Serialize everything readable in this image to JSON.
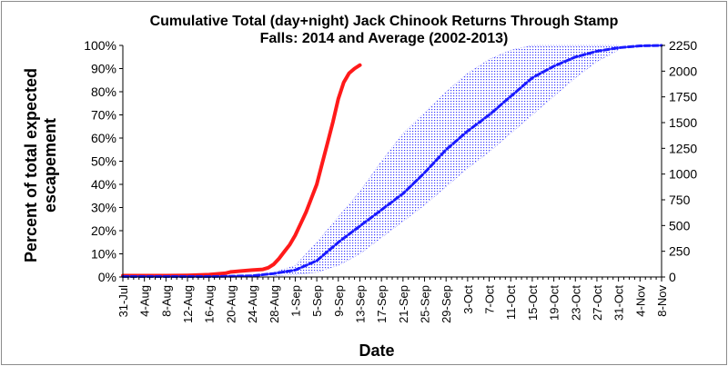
{
  "chart_data": {
    "type": "line",
    "title": "Cumulative Total (day+night) Jack Chinook Returns Through Stamp Falls: 2014 and Average (2002-2013)",
    "title_lines": [
      "Cumulative Total (day+night) Jack Chinook Returns Through Stamp",
      "Falls: 2014 and Average (2002-2013)"
    ],
    "xlabel": "Date",
    "ylabel": "Percent  of total expected escapement",
    "ylabel_lines": [
      "Percent  of total expected",
      "escapement"
    ],
    "x_ticks": [
      "31-Jul",
      "4-Aug",
      "8-Aug",
      "12-Aug",
      "16-Aug",
      "20-Aug",
      "24-Aug",
      "28-Aug",
      "1-Sep",
      "5-Sep",
      "9-Sep",
      "13-Sep",
      "17-Sep",
      "21-Sep",
      "25-Sep",
      "29-Sep",
      "3-Oct",
      "7-Oct",
      "11-Oct",
      "15-Oct",
      "19-Oct",
      "23-Oct",
      "27-Oct",
      "31-Oct",
      "4-Nov",
      "8-Nov"
    ],
    "x_range": [
      "2014-07-31",
      "2014-11-08"
    ],
    "y_left_ticks": [
      "0%",
      "10%",
      "20%",
      "30%",
      "40%",
      "50%",
      "60%",
      "70%",
      "80%",
      "90%",
      "100%"
    ],
    "y_left_range": [
      0,
      100
    ],
    "y_right_ticks": [
      "0",
      "250",
      "500",
      "750",
      "1000",
      "1250",
      "1500",
      "1750",
      "2000",
      "2250"
    ],
    "y_right_range": [
      0,
      2250
    ],
    "grid": false,
    "legend": "none",
    "series": [
      {
        "color": "#ff1a1a",
        "style": "solid",
        "axis": "left",
        "points": [
          [
            "2014-07-31",
            0.6
          ],
          [
            "2014-08-04",
            0.6
          ],
          [
            "2014-08-08",
            0.6
          ],
          [
            "2014-08-12",
            0.7
          ],
          [
            "2014-08-16",
            1.0
          ],
          [
            "2014-08-19",
            1.6
          ],
          [
            "2014-08-20",
            2.2
          ],
          [
            "2014-08-22",
            2.6
          ],
          [
            "2014-08-24",
            3.0
          ],
          [
            "2014-08-26",
            3.3
          ],
          [
            "2014-08-27",
            4.0
          ],
          [
            "2014-08-28",
            5.5
          ],
          [
            "2014-08-29",
            8.0
          ],
          [
            "2014-08-30",
            11.0
          ],
          [
            "2014-08-31",
            14.0
          ],
          [
            "2014-09-01",
            18.0
          ],
          [
            "2014-09-02",
            23.0
          ],
          [
            "2014-09-03",
            28.0
          ],
          [
            "2014-09-04",
            34.0
          ],
          [
            "2014-09-05",
            40.0
          ],
          [
            "2014-09-06",
            49.0
          ],
          [
            "2014-09-07",
            58.0
          ],
          [
            "2014-09-08",
            67.0
          ],
          [
            "2014-09-09",
            77.0
          ],
          [
            "2014-09-10",
            84.0
          ],
          [
            "2014-09-11",
            88.0
          ],
          [
            "2014-09-12",
            90.0
          ],
          [
            "2014-09-13",
            91.5
          ]
        ]
      },
      {
        "color": "#1a1aff",
        "style": "dashed",
        "axis": "left",
        "points": [
          [
            "2014-07-31",
            0.2
          ],
          [
            "2014-08-16",
            0.2
          ],
          [
            "2014-08-20",
            0.3
          ],
          [
            "2014-08-24",
            0.5
          ],
          [
            "2014-08-28",
            1.5
          ],
          [
            "2014-09-01",
            3.0
          ],
          [
            "2014-09-05",
            7.0
          ],
          [
            "2014-09-09",
            15.0
          ],
          [
            "2014-09-13",
            22.0
          ],
          [
            "2014-09-17",
            29.0
          ],
          [
            "2014-09-21",
            36.0
          ],
          [
            "2014-09-25",
            45.0
          ],
          [
            "2014-09-29",
            55.0
          ],
          [
            "2014-10-03",
            63.0
          ],
          [
            "2014-10-07",
            70.0
          ],
          [
            "2014-10-11",
            78.0
          ],
          [
            "2014-10-15",
            86.0
          ],
          [
            "2014-10-19",
            91.0
          ],
          [
            "2014-10-23",
            95.0
          ],
          [
            "2014-10-27",
            97.5
          ],
          [
            "2014-10-31",
            99.0
          ],
          [
            "2014-11-04",
            99.8
          ],
          [
            "2014-11-08",
            100.0
          ]
        ]
      }
    ],
    "band": {
      "color": "#1a1aff",
      "style": "dotted-fill",
      "axis": "left",
      "x": [
        "2014-08-28",
        "2014-09-01",
        "2014-09-05",
        "2014-09-09",
        "2014-09-13",
        "2014-09-17",
        "2014-09-21",
        "2014-09-25",
        "2014-09-29",
        "2014-10-03",
        "2014-10-07",
        "2014-10-11",
        "2014-10-15",
        "2014-10-19",
        "2014-10-23",
        "2014-10-27",
        "2014-10-31"
      ],
      "low": [
        0.5,
        1.0,
        2.0,
        5.0,
        10.0,
        17.0,
        24.0,
        31.0,
        39.0,
        47.0,
        54.0,
        62.0,
        70.0,
        78.0,
        86.0,
        93.0,
        98.0
      ],
      "high": [
        2.0,
        5.0,
        15.0,
        26.0,
        37.0,
        50.0,
        62.0,
        71.0,
        80.0,
        88.0,
        94.0,
        98.0,
        100.0,
        100.0,
        100.0,
        100.0,
        100.0
      ]
    }
  }
}
